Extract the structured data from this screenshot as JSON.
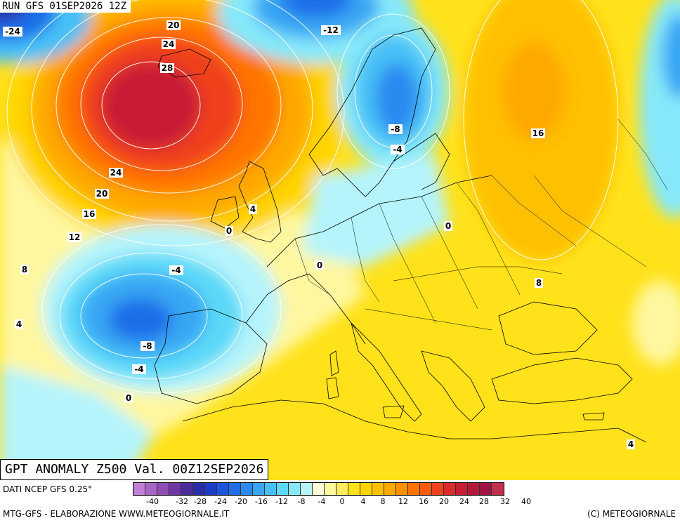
{
  "run_label": "RUN GFS 01SEP2026 12Z",
  "title": "GPT ANOMALY Z500 Val. 00Z12SEP2026",
  "data_source": "DATI NCEP GFS 0.25°",
  "credit_left": "MTG-GFS - ELABORAZIONE WWW.METEOGIORNALE.IT",
  "credit_right": "(C) METEOGIORNALE",
  "scale": {
    "colors": [
      "#c27fd6",
      "#a866c4",
      "#8f4db3",
      "#7236a3",
      "#4c2b9b",
      "#2a2ca8",
      "#1c3cc8",
      "#1c55dc",
      "#1e6ee8",
      "#2a8af0",
      "#38a6f4",
      "#46c0f6",
      "#5cd8f8",
      "#86e8fa",
      "#b6f4fc",
      "#ffffd8",
      "#fff7a0",
      "#ffec5c",
      "#ffe21a",
      "#ffd400",
      "#ffc000",
      "#ffa800",
      "#ff9000",
      "#ff7400",
      "#ff5a10",
      "#f0401e",
      "#dc2a2a",
      "#c81e34",
      "#b4183c",
      "#a01444",
      "#c0304c"
    ],
    "ticks": [
      "-40",
      "-32",
      "-28",
      "-24",
      "-20",
      "-16",
      "-12",
      "-8",
      "-4",
      "0",
      "4",
      "8",
      "12",
      "16",
      "20",
      "24",
      "28",
      "32",
      "40"
    ]
  },
  "contour_labels": [
    {
      "text": "-24"
    },
    {
      "text": "20"
    },
    {
      "text": "24"
    },
    {
      "text": "28"
    },
    {
      "text": "24"
    },
    {
      "text": "20"
    },
    {
      "text": "16"
    },
    {
      "text": "12"
    },
    {
      "text": "8"
    },
    {
      "text": "4"
    },
    {
      "text": "-12"
    },
    {
      "text": "-8"
    },
    {
      "text": "-4"
    },
    {
      "text": "16"
    },
    {
      "text": "4"
    },
    {
      "text": "0"
    },
    {
      "text": "0"
    },
    {
      "text": "0"
    },
    {
      "text": "-4"
    },
    {
      "text": "-8"
    },
    {
      "text": "-4"
    },
    {
      "text": "0"
    },
    {
      "text": "8"
    },
    {
      "text": "4"
    }
  ]
}
